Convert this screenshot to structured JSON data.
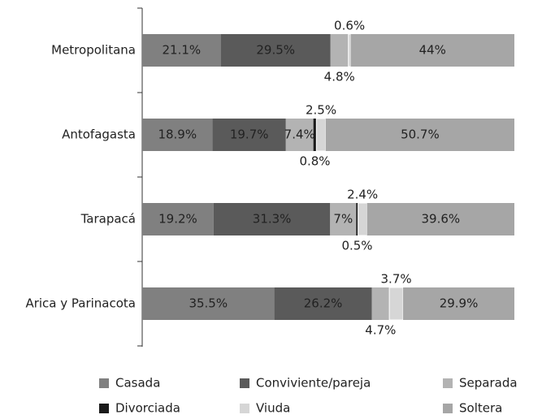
{
  "chart_data": {
    "type": "stacked-barh",
    "categories": [
      "Metropolitana",
      "Antofagasta",
      "Tarapacá",
      "Arica y Parinacota"
    ],
    "xlim": [
      0,
      100
    ],
    "series": [
      {
        "name": "Casada",
        "color": "#808080",
        "values": [
          21.1,
          18.9,
          19.2,
          35.5
        ],
        "value_labels": [
          "21.1%",
          "18.9%",
          "19.2%",
          "35.5%"
        ]
      },
      {
        "name": "Conviviente/pareja",
        "color": "#5a5a5a",
        "values": [
          29.5,
          19.7,
          31.3,
          26.2
        ],
        "value_labels": [
          "29.5%",
          "19.7%",
          "31.3%",
          "26.2%"
        ]
      },
      {
        "name": "Separada",
        "color": "#b3b3b3",
        "values": [
          4.8,
          7.4,
          7,
          4.7
        ],
        "value_labels": [
          "4.8%",
          "7.4%",
          "7%",
          "4.7%"
        ]
      },
      {
        "name": "Divorciada",
        "color": "#1a1a1a",
        "values": [
          null,
          0.8,
          0.5,
          null
        ],
        "value_labels": [
          null,
          "0.8%",
          "0.5%",
          null
        ]
      },
      {
        "name": "Viuda",
        "color": "#d6d6d6",
        "values": [
          0.6,
          2.5,
          2.4,
          3.7
        ],
        "value_labels": [
          "0.6%",
          "2.5%",
          "2.4%",
          "3.7%"
        ]
      },
      {
        "name": "Soltera",
        "color": "#a6a6a6",
        "values": [
          44,
          50.7,
          39.6,
          29.9
        ],
        "value_labels": [
          "44%",
          "50.7%",
          "39.6%",
          "29.9%"
        ]
      }
    ]
  }
}
